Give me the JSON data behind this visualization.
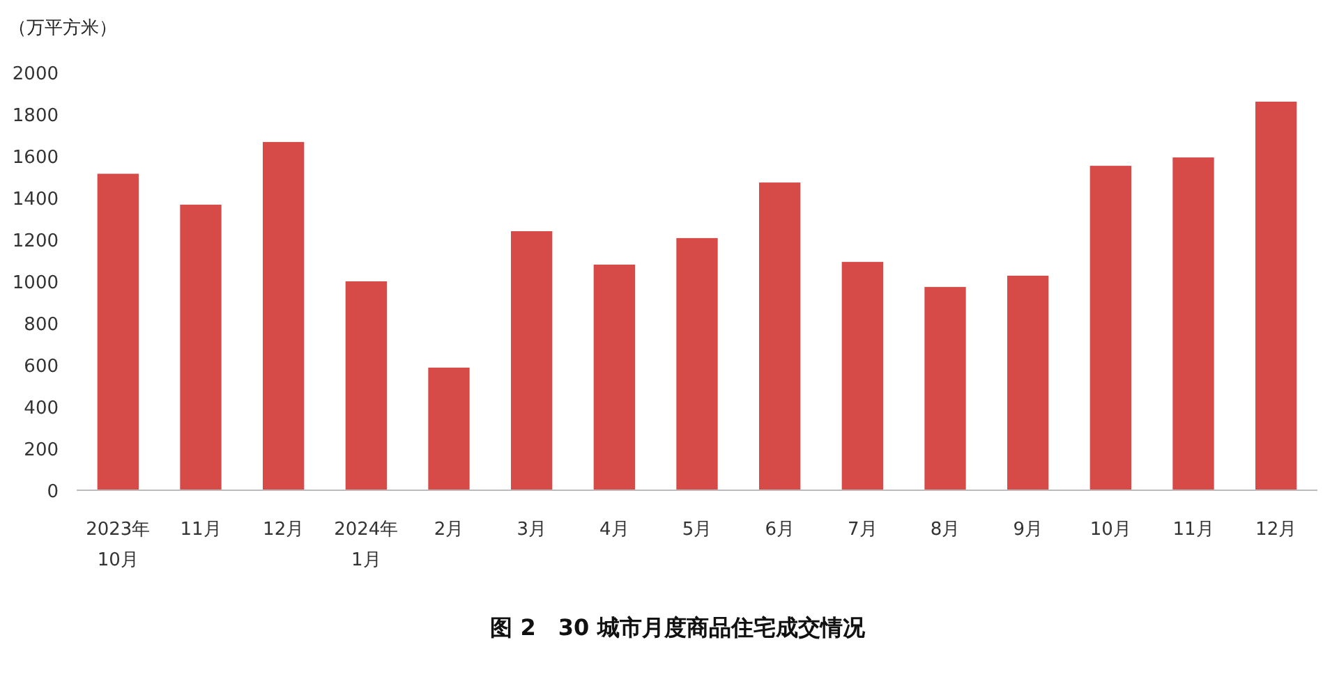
{
  "chart_data": {
    "type": "bar",
    "title": "图 2　30 城市月度商品住宅成交情况",
    "ylabel": "（万平方米）",
    "categories": [
      "2023年\n10月",
      "11月",
      "12月",
      "2024年\n1月",
      "2月",
      "3月",
      "4月",
      "5月",
      "6月",
      "7月",
      "8月",
      "9月",
      "10月",
      "11月",
      "12月"
    ],
    "values": [
      1515,
      1367,
      1667,
      1000,
      587,
      1240,
      1080,
      1207,
      1473,
      1093,
      973,
      1027,
      1553,
      1593,
      1860
    ],
    "color": "#d64a47",
    "ylim": [
      0,
      2000
    ],
    "yticks": [
      0,
      200,
      400,
      600,
      800,
      1000,
      1200,
      1400,
      1600,
      1800,
      2000
    ]
  }
}
